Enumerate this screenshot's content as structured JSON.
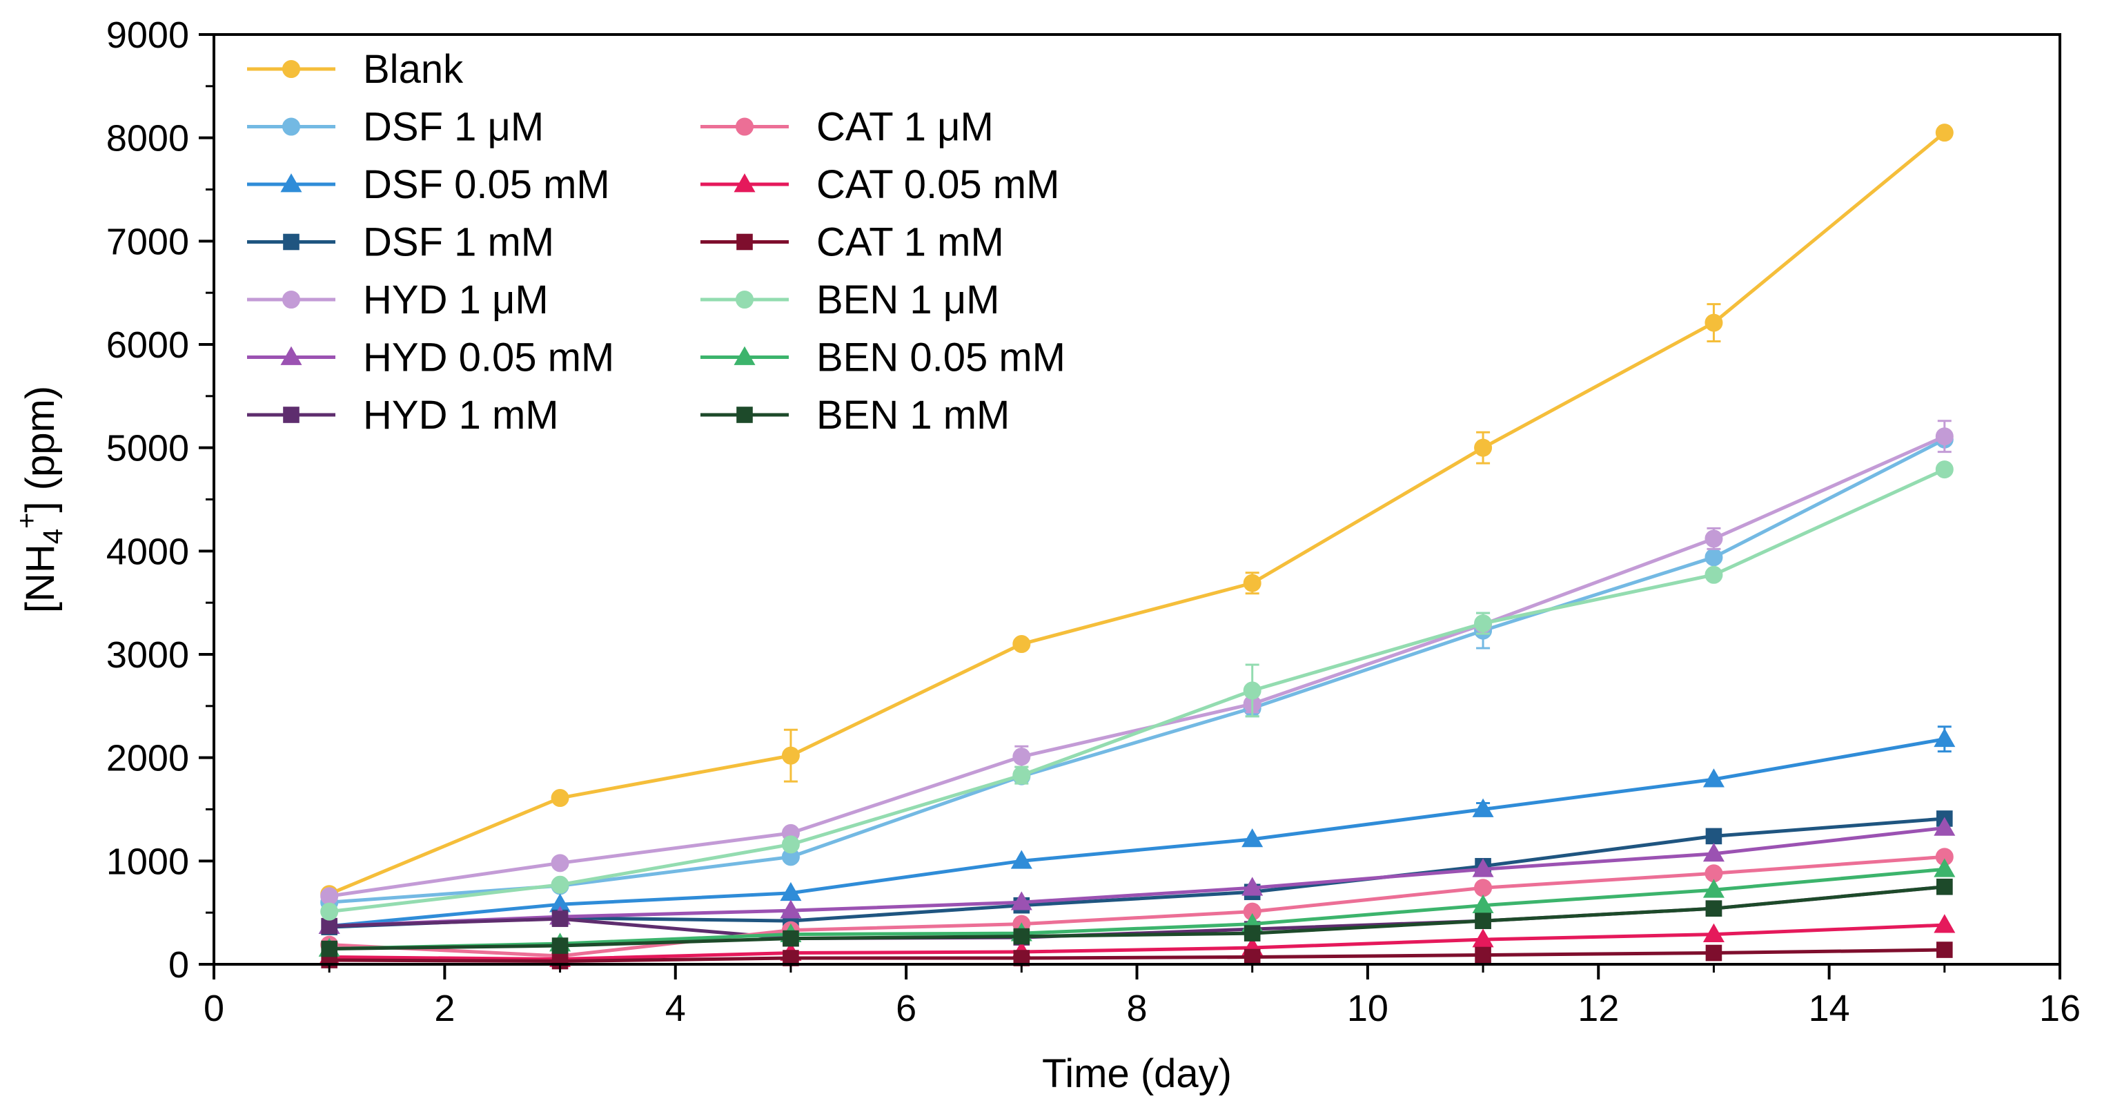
{
  "chart_data": {
    "type": "line",
    "title": "",
    "xlabel": "Time (day)",
    "ylabel": {
      "prefix": "[NH",
      "sub": "4",
      "sup": "+",
      "suffix": "] (ppm)"
    },
    "xlim": [
      0,
      16
    ],
    "ylim": [
      0,
      9000
    ],
    "x_ticks": [
      "0",
      "2",
      "4",
      "6",
      "8",
      "10",
      "12",
      "14",
      "16"
    ],
    "y_ticks": [
      "0",
      "1000",
      "2000",
      "3000",
      "4000",
      "5000",
      "6000",
      "7000",
      "8000",
      "9000"
    ],
    "x": [
      1,
      3,
      5,
      7,
      9,
      11,
      13,
      15
    ],
    "grid": false,
    "legend": "top-left",
    "series": [
      {
        "name": "Blank",
        "color": "#F5BE3A",
        "marker": "circle",
        "values": [
          680,
          1610,
          2020,
          3100,
          3690,
          5000,
          6210,
          8050
        ],
        "errors": [
          0,
          0,
          250,
          0,
          100,
          150,
          180,
          0
        ]
      },
      {
        "name": "DSF 1 μM",
        "color": "#73B9E3",
        "marker": "circle",
        "values": [
          600,
          760,
          1040,
          1820,
          2480,
          3230,
          3940,
          5080
        ],
        "errors": [
          0,
          0,
          0,
          0,
          80,
          170,
          0,
          0
        ]
      },
      {
        "name": "DSF 0.05 mM",
        "color": "#2F8CD8",
        "marker": "triangle",
        "values": [
          370,
          580,
          690,
          1000,
          1210,
          1500,
          1790,
          2180
        ],
        "errors": [
          0,
          0,
          0,
          0,
          0,
          60,
          0,
          120
        ]
      },
      {
        "name": "DSF 1 mM",
        "color": "#1F5580",
        "marker": "square",
        "values": [
          360,
          450,
          420,
          570,
          700,
          950,
          1240,
          1410
        ],
        "errors": [
          0,
          0,
          0,
          0,
          0,
          0,
          0,
          0
        ]
      },
      {
        "name": "HYD 1 μM",
        "color": "#C39BD6",
        "marker": "circle",
        "values": [
          660,
          980,
          1270,
          2010,
          2520,
          3290,
          4120,
          5110
        ],
        "errors": [
          0,
          0,
          0,
          100,
          80,
          0,
          100,
          150
        ]
      },
      {
        "name": "HYD 0.05 mM",
        "color": "#9B52B2",
        "marker": "triangle",
        "values": [
          370,
          460,
          520,
          600,
          740,
          920,
          1070,
          1320
        ],
        "errors": [
          0,
          0,
          0,
          0,
          0,
          0,
          0,
          0
        ]
      },
      {
        "name": "HYD 1 mM",
        "color": "#5E2D6E",
        "marker": "square",
        "values": [
          370,
          440,
          250,
          260,
          340,
          420,
          540,
          750
        ],
        "errors": [
          0,
          0,
          0,
          0,
          0,
          0,
          0,
          0
        ]
      },
      {
        "name": "CAT 1 μM",
        "color": "#EC6F96",
        "marker": "circle",
        "values": [
          190,
          80,
          330,
          390,
          510,
          740,
          880,
          1040
        ],
        "errors": [
          0,
          0,
          0,
          0,
          0,
          0,
          0,
          0
        ]
      },
      {
        "name": "CAT 0.05 mM",
        "color": "#E5195B",
        "marker": "triangle",
        "values": [
          70,
          50,
          110,
          120,
          160,
          240,
          290,
          380
        ],
        "errors": [
          0,
          0,
          0,
          0,
          0,
          0,
          0,
          0
        ]
      },
      {
        "name": "CAT 1 mM",
        "color": "#7E0E2D",
        "marker": "square",
        "values": [
          40,
          30,
          60,
          60,
          70,
          90,
          110,
          140
        ],
        "errors": [
          0,
          0,
          0,
          0,
          0,
          0,
          0,
          0
        ]
      },
      {
        "name": "BEN 1 μM",
        "color": "#93DCB0",
        "marker": "circle",
        "values": [
          510,
          770,
          1160,
          1830,
          2650,
          3300,
          3770,
          4790
        ],
        "errors": [
          0,
          0,
          0,
          80,
          250,
          100,
          0,
          0
        ]
      },
      {
        "name": "BEN 0.05 mM",
        "color": "#3CB46C",
        "marker": "triangle",
        "values": [
          150,
          200,
          290,
          300,
          390,
          570,
          720,
          920
        ],
        "errors": [
          0,
          0,
          0,
          0,
          0,
          0,
          0,
          0
        ]
      },
      {
        "name": "BEN 1 mM",
        "color": "#1D4A2A",
        "marker": "square",
        "values": [
          150,
          180,
          250,
          270,
          300,
          420,
          540,
          750
        ],
        "errors": [
          0,
          0,
          0,
          0,
          0,
          0,
          0,
          0
        ]
      }
    ],
    "legend_layout": [
      [
        "Blank"
      ],
      [
        "DSF 1 μM",
        "CAT 1 μM"
      ],
      [
        "DSF 0.05 mM",
        "CAT 0.05 mM"
      ],
      [
        "DSF 1 mM",
        "CAT 1 mM"
      ],
      [
        "HYD 1 μM",
        "BEN 1 μM"
      ],
      [
        "HYD 0.05 mM",
        "BEN 0.05 mM"
      ],
      [
        "HYD 1 mM",
        "BEN 1 mM"
      ]
    ]
  }
}
